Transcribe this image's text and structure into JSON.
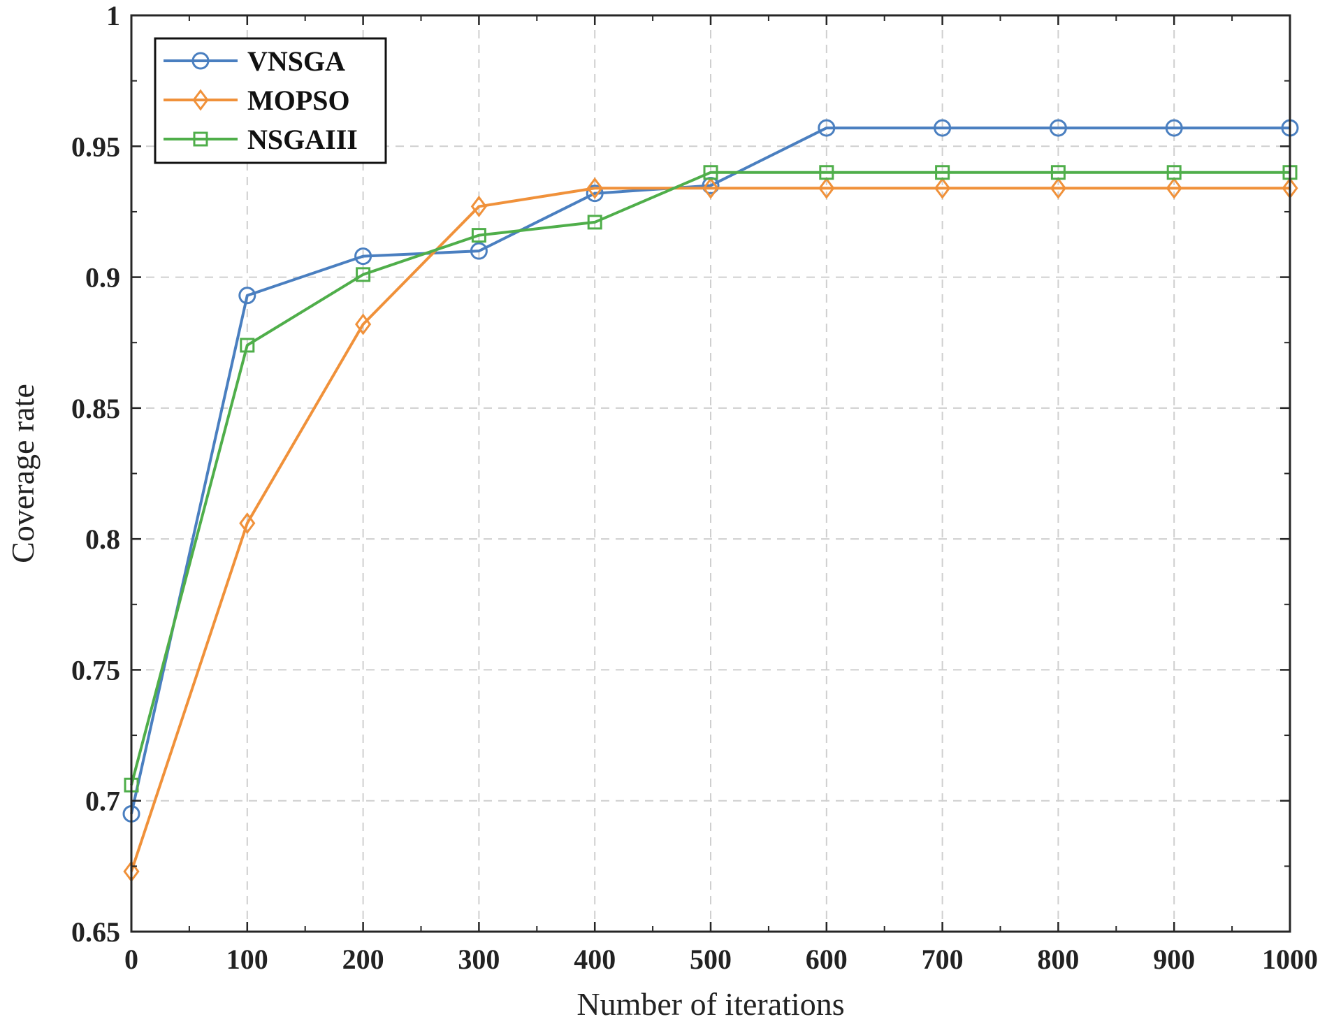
{
  "chart_data": {
    "type": "line",
    "title": "",
    "xlabel": "Number of iterations",
    "ylabel": "Coverage rate",
    "xlim": [
      0,
      1000
    ],
    "ylim": [
      0.65,
      1
    ],
    "xticks": [
      0,
      100,
      200,
      300,
      400,
      500,
      600,
      700,
      800,
      900,
      1000
    ],
    "xtick_labels": [
      "0",
      "100",
      "200",
      "300",
      "400",
      "500",
      "600",
      "700",
      "800",
      "900",
      "1000"
    ],
    "yticks": [
      0.65,
      0.7,
      0.75,
      0.8,
      0.85,
      0.9,
      0.95,
      1
    ],
    "ytick_labels": [
      "0.65",
      "0.7",
      "0.75",
      "0.8",
      "0.85",
      "0.9",
      "0.95",
      "1"
    ],
    "grid": true,
    "legend_position": "top-left",
    "x": [
      0,
      100,
      200,
      300,
      400,
      500,
      600,
      700,
      800,
      900,
      1000
    ],
    "series": [
      {
        "name": "VNSGA",
        "color": "#4a7fc0",
        "marker": "circle",
        "values": [
          0.695,
          0.893,
          0.908,
          0.91,
          0.932,
          0.935,
          0.957,
          0.957,
          0.957,
          0.957,
          0.957
        ]
      },
      {
        "name": "MOPSO",
        "color": "#f0913a",
        "marker": "diamond",
        "values": [
          0.673,
          0.806,
          0.882,
          0.927,
          0.934,
          0.934,
          0.934,
          0.934,
          0.934,
          0.934,
          0.934
        ]
      },
      {
        "name": "NSGAIII",
        "color": "#4fae4a",
        "marker": "square",
        "values": [
          0.706,
          0.874,
          0.901,
          0.916,
          0.921,
          0.94,
          0.94,
          0.94,
          0.94,
          0.94,
          0.94
        ]
      }
    ]
  }
}
